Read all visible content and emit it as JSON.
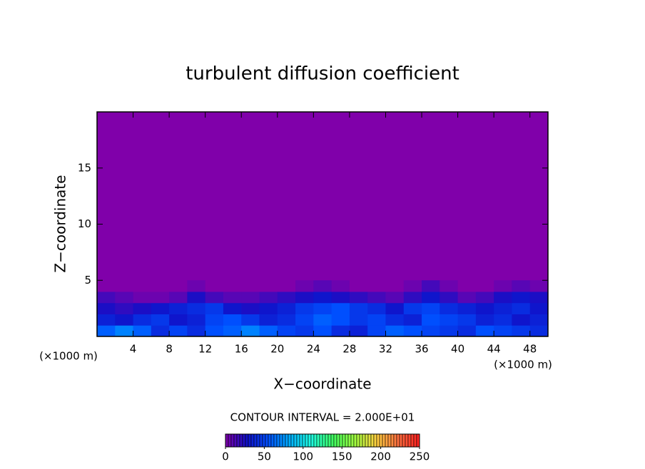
{
  "chart_data": {
    "type": "contour",
    "title": "turbulent diffusion coefficient",
    "x_label": "X−coordinate",
    "y_label": "Z−coordinate",
    "x_unit_label": "(×1000 m)",
    "y_unit_label": "(×1000 m)",
    "xlim": [
      0,
      50
    ],
    "ylim": [
      0,
      20
    ],
    "xticks": [
      4,
      8,
      12,
      16,
      20,
      24,
      28,
      32,
      36,
      40,
      44,
      48
    ],
    "yticks": [
      5,
      10,
      15
    ],
    "x": [
      1,
      3,
      5,
      7,
      9,
      11,
      13,
      15,
      17,
      19,
      21,
      23,
      25,
      27,
      29,
      31,
      33,
      35,
      37,
      39,
      41,
      43,
      45,
      47,
      49
    ],
    "y": [
      0.5,
      1.5,
      2.5,
      3.5,
      4.5
    ],
    "values": [
      [
        60,
        70,
        60,
        40,
        50,
        40,
        55,
        60,
        70,
        60,
        50,
        45,
        55,
        40,
        35,
        50,
        60,
        55,
        50,
        45,
        40,
        55,
        50,
        45,
        40
      ],
      [
        35,
        30,
        40,
        45,
        30,
        35,
        50,
        55,
        45,
        35,
        40,
        50,
        60,
        55,
        45,
        50,
        40,
        35,
        55,
        50,
        45,
        35,
        40,
        30,
        35
      ],
      [
        25,
        20,
        25,
        30,
        35,
        40,
        45,
        30,
        25,
        30,
        35,
        45,
        50,
        55,
        45,
        40,
        30,
        45,
        50,
        40,
        35,
        30,
        35,
        40,
        30
      ],
      [
        15,
        10,
        5,
        5,
        10,
        25,
        15,
        10,
        10,
        15,
        20,
        25,
        30,
        25,
        20,
        15,
        10,
        20,
        30,
        20,
        10,
        15,
        25,
        30,
        25
      ],
      [
        0,
        0,
        0,
        0,
        0,
        5,
        0,
        0,
        0,
        0,
        0,
        5,
        10,
        5,
        0,
        0,
        0,
        5,
        15,
        5,
        0,
        0,
        5,
        10,
        5
      ]
    ],
    "contour_interval_label": "CONTOUR INTERVAL = 2.000E+01",
    "colorbar": {
      "clim": [
        0,
        250
      ],
      "ticks": [
        0,
        50,
        100,
        150,
        200,
        250
      ],
      "colors": [
        "#8000aa",
        "#1010c8",
        "#0050ff",
        "#00b0ff",
        "#20ffe0",
        "#40ff60",
        "#a0ff40",
        "#ffd040",
        "#ff7040",
        "#ff2020"
      ]
    }
  }
}
